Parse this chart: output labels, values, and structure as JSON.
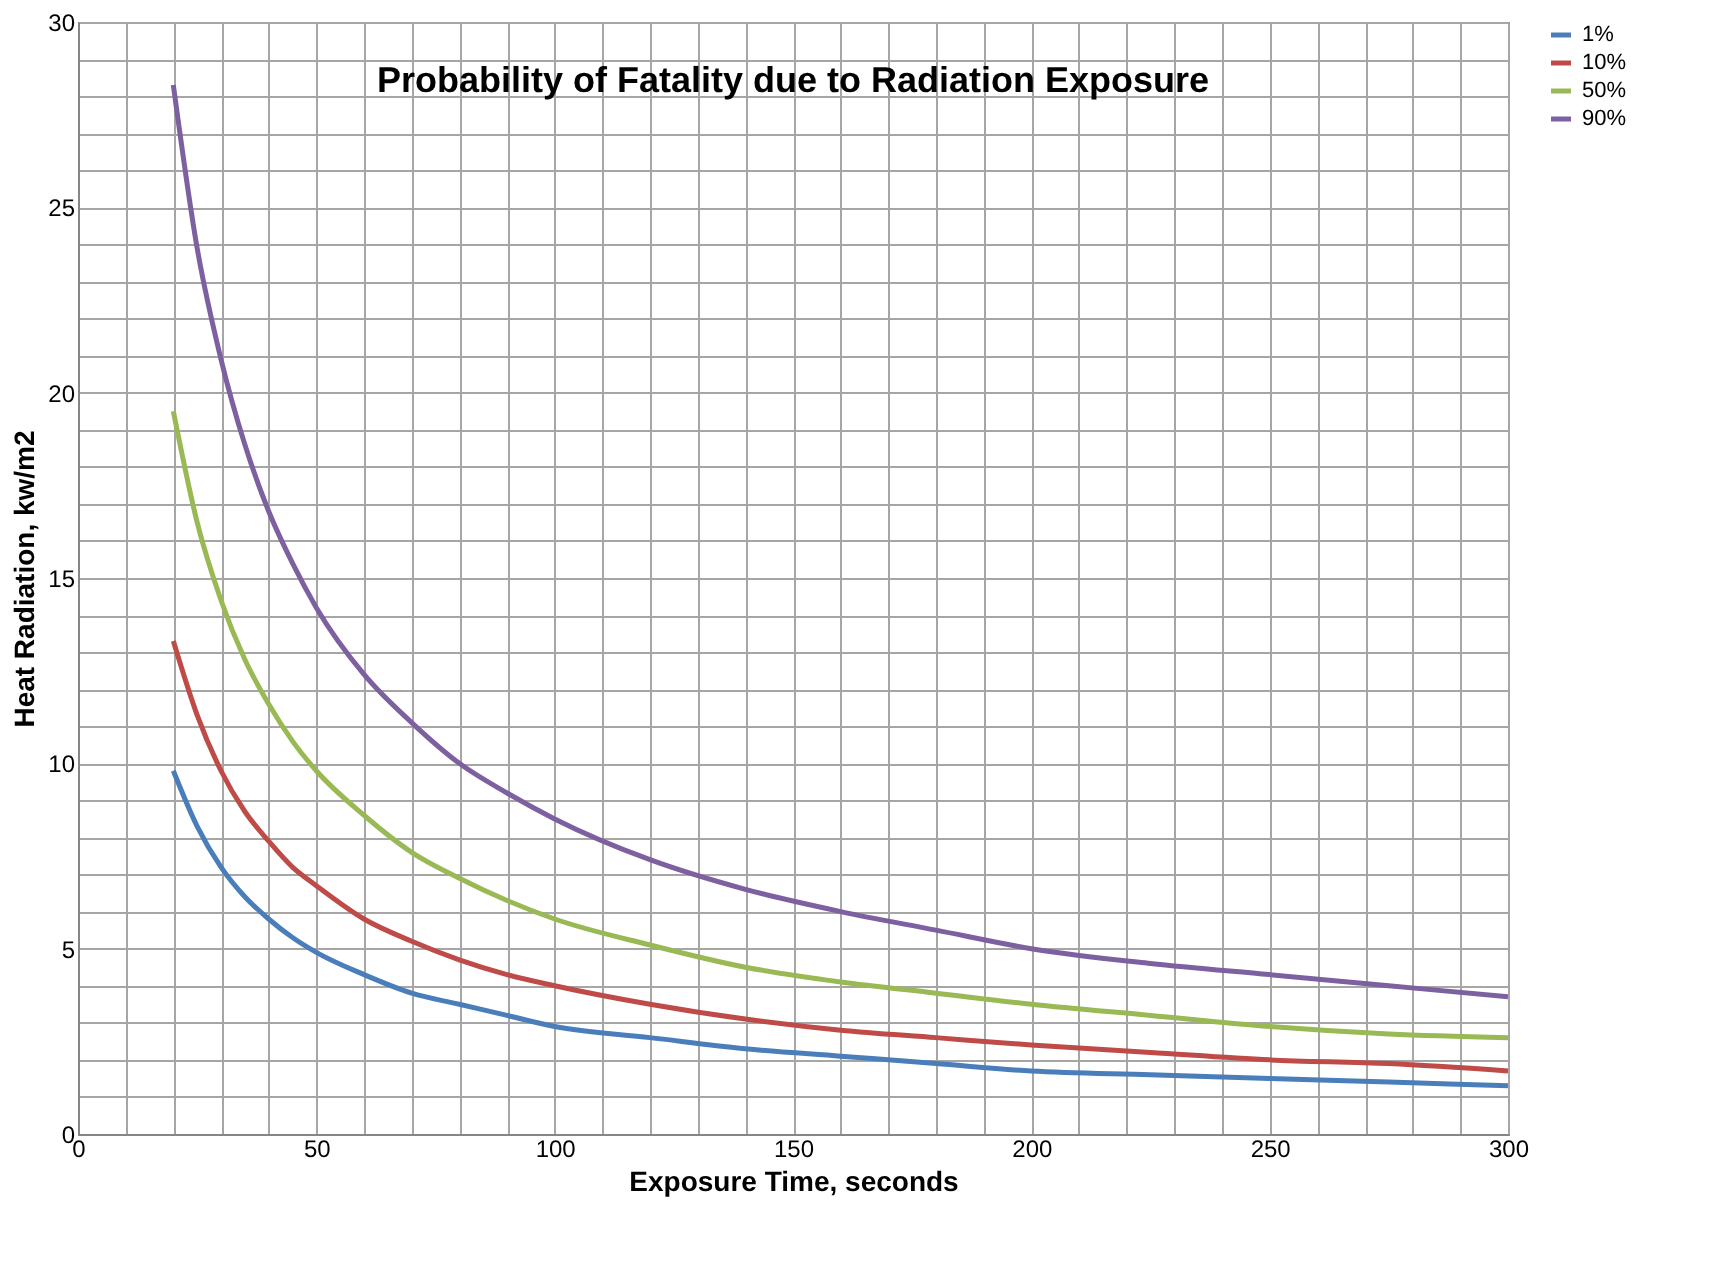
{
  "chart_data": {
    "type": "line",
    "title": "Probability of Fatality due to Radiation Exposure",
    "xlabel": "Exposure Time, seconds",
    "ylabel": "Heat Radiation, kw/m2",
    "x": [
      20,
      25,
      30,
      35,
      40,
      45,
      50,
      60,
      70,
      80,
      90,
      100,
      120,
      140,
      160,
      180,
      200,
      225,
      250,
      275,
      300
    ],
    "series": [
      {
        "name": "1%",
        "color": "#4a7ebb",
        "values": [
          9.8,
          8.3,
          7.2,
          6.4,
          5.8,
          5.3,
          4.9,
          4.3,
          3.8,
          3.5,
          3.2,
          2.9,
          2.6,
          2.3,
          2.1,
          1.9,
          1.7,
          1.6,
          1.5,
          1.4,
          1.3
        ]
      },
      {
        "name": "10%",
        "color": "#be4b48",
        "values": [
          13.3,
          11.3,
          9.8,
          8.7,
          7.9,
          7.2,
          6.7,
          5.8,
          5.2,
          4.7,
          4.3,
          4.0,
          3.5,
          3.1,
          2.8,
          2.6,
          2.4,
          2.2,
          2.0,
          1.9,
          1.7
        ]
      },
      {
        "name": "50%",
        "color": "#98b954",
        "values": [
          19.5,
          16.5,
          14.4,
          12.8,
          11.6,
          10.6,
          9.8,
          8.6,
          7.6,
          6.9,
          6.3,
          5.8,
          5.1,
          4.5,
          4.1,
          3.8,
          3.5,
          3.2,
          2.9,
          2.7,
          2.6
        ]
      },
      {
        "name": "90%",
        "color": "#7d60a0",
        "values": [
          28.3,
          23.9,
          20.9,
          18.6,
          16.8,
          15.4,
          14.2,
          12.4,
          11.1,
          10.0,
          9.2,
          8.5,
          7.4,
          6.6,
          6.0,
          5.5,
          5.0,
          4.6,
          4.3,
          4.0,
          3.7
        ]
      }
    ],
    "xlim": [
      0,
      300
    ],
    "ylim": [
      0,
      30
    ],
    "xticks": [
      0,
      {
        "value": 10,
        "label": null
      },
      {
        "value": 20,
        "label": null
      },
      {
        "value": 30,
        "label": null
      },
      {
        "value": 40,
        "label": null
      },
      50,
      {
        "value": 60,
        "label": null
      },
      {
        "value": 70,
        "label": null
      },
      {
        "value": 80,
        "label": null
      },
      {
        "value": 90,
        "label": null
      },
      100,
      {
        "value": 110,
        "label": null
      },
      {
        "value": 120,
        "label": null
      },
      {
        "value": 130,
        "label": null
      },
      {
        "value": 140,
        "label": null
      },
      150,
      {
        "value": 160,
        "label": null
      },
      {
        "value": 170,
        "label": null
      },
      {
        "value": 180,
        "label": null
      },
      {
        "value": 190,
        "label": null
      },
      200,
      {
        "value": 210,
        "label": null
      },
      {
        "value": 220,
        "label": null
      },
      {
        "value": 230,
        "label": null
      },
      {
        "value": 240,
        "label": null
      },
      250,
      {
        "value": 260,
        "label": null
      },
      {
        "value": 270,
        "label": null
      },
      {
        "value": 280,
        "label": null
      },
      {
        "value": 290,
        "label": null
      },
      300
    ],
    "yticks": [
      0,
      {
        "value": 1,
        "label": null
      },
      {
        "value": 2,
        "label": null
      },
      {
        "value": 3,
        "label": null
      },
      {
        "value": 4,
        "label": null
      },
      5,
      {
        "value": 6,
        "label": null
      },
      {
        "value": 7,
        "label": null
      },
      {
        "value": 8,
        "label": null
      },
      {
        "value": 9,
        "label": null
      },
      10,
      {
        "value": 11,
        "label": null
      },
      {
        "value": 12,
        "label": null
      },
      {
        "value": 13,
        "label": null
      },
      {
        "value": 14,
        "label": null
      },
      15,
      {
        "value": 16,
        "label": null
      },
      {
        "value": 17,
        "label": null
      },
      {
        "value": 18,
        "label": null
      },
      {
        "value": 19,
        "label": null
      },
      20,
      {
        "value": 21,
        "label": null
      },
      {
        "value": 22,
        "label": null
      },
      {
        "value": 23,
        "label": null
      },
      {
        "value": 24,
        "label": null
      },
      25,
      {
        "value": 26,
        "label": null
      },
      {
        "value": 27,
        "label": null
      },
      {
        "value": 28,
        "label": null
      },
      {
        "value": 29,
        "label": null
      },
      30
    ],
    "grid": true,
    "legend": "right",
    "marker": "none",
    "line_style": "solid"
  }
}
